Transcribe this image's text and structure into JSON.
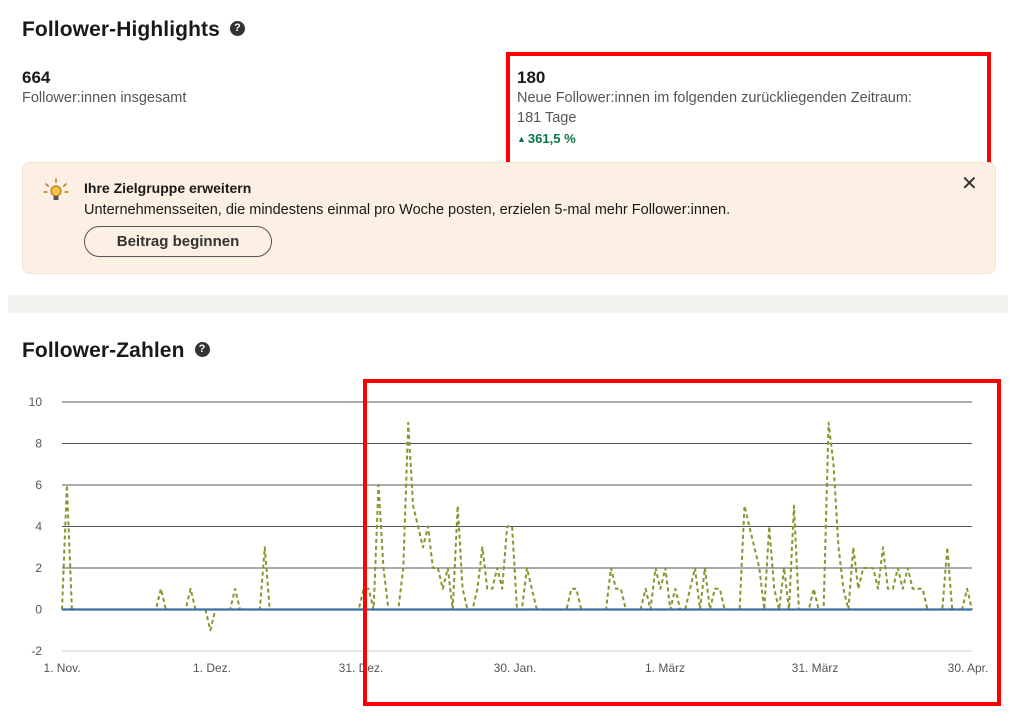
{
  "highlights": {
    "title": "Follower-Highlights",
    "help": "?",
    "total": {
      "value": "664",
      "label": "Follower:innen insgesamt"
    },
    "new": {
      "value": "180",
      "label_line1": "Neue Follower:innen im folgenden zurückliegenden Zeitraum:",
      "label_line2": "181 Tage",
      "change": "361,5 %",
      "change_color": "#057642"
    }
  },
  "banner": {
    "icon": "lightbulb-icon",
    "title": "Ihre Zielgruppe erweitern",
    "text": "Unternehmensseiten, die mindestens einmal pro Woche posten, erzielen 5-mal mehr Follower:innen.",
    "button": "Beitrag beginnen",
    "close": "✕"
  },
  "counts": {
    "title": "Follower-Zahlen",
    "help": "?"
  },
  "annotation_color": "#ff0000",
  "chart_data": {
    "type": "line",
    "ylim": [
      -2,
      10
    ],
    "yticks": [
      -2,
      0,
      2,
      4,
      6,
      8,
      10
    ],
    "xticks": [
      "1. Nov.",
      "1. Dez.",
      "31. Dez.",
      "30. Jan.",
      "1. März",
      "31. März",
      "30. Apr."
    ],
    "grid": true,
    "series": [
      {
        "color": "#7f9a2e",
        "style": "dashed",
        "points": [
          [
            0,
            0
          ],
          [
            1,
            6
          ],
          [
            2,
            0
          ],
          [
            3,
            0
          ],
          [
            4,
            0
          ],
          [
            5,
            0
          ],
          [
            6,
            0
          ],
          [
            7,
            0
          ],
          [
            8,
            0
          ],
          [
            9,
            0
          ],
          [
            10,
            0
          ],
          [
            11,
            0
          ],
          [
            12,
            0
          ],
          [
            13,
            0
          ],
          [
            14,
            0
          ],
          [
            15,
            0
          ],
          [
            16,
            0
          ],
          [
            17,
            0
          ],
          [
            18,
            0
          ],
          [
            19,
            0
          ],
          [
            20,
            1
          ],
          [
            21,
            0
          ],
          [
            22,
            0
          ],
          [
            23,
            0
          ],
          [
            24,
            0
          ],
          [
            25,
            0
          ],
          [
            26,
            1
          ],
          [
            27,
            0
          ],
          [
            28,
            0
          ],
          [
            29,
            0
          ],
          [
            30,
            -1
          ],
          [
            31,
            0
          ],
          [
            32,
            0
          ],
          [
            33,
            0
          ],
          [
            34,
            0
          ],
          [
            35,
            1
          ],
          [
            36,
            0
          ],
          [
            37,
            0
          ],
          [
            38,
            0
          ],
          [
            39,
            0
          ],
          [
            40,
            0
          ],
          [
            41,
            3
          ],
          [
            42,
            0
          ],
          [
            43,
            0
          ],
          [
            44,
            0
          ],
          [
            45,
            0
          ],
          [
            46,
            0
          ],
          [
            47,
            0
          ],
          [
            48,
            0
          ],
          [
            49,
            0
          ],
          [
            50,
            0
          ],
          [
            51,
            0
          ],
          [
            52,
            0
          ],
          [
            53,
            0
          ],
          [
            54,
            0
          ],
          [
            55,
            0
          ],
          [
            56,
            0
          ],
          [
            57,
            0
          ],
          [
            58,
            0
          ],
          [
            59,
            0
          ],
          [
            60,
            0
          ],
          [
            61,
            1
          ],
          [
            62,
            1
          ],
          [
            63,
            0
          ],
          [
            64,
            6
          ],
          [
            65,
            2
          ],
          [
            66,
            0
          ],
          [
            67,
            0
          ],
          [
            68,
            0
          ],
          [
            69,
            2
          ],
          [
            70,
            9
          ],
          [
            71,
            5
          ],
          [
            72,
            4
          ],
          [
            73,
            3
          ],
          [
            74,
            4
          ],
          [
            75,
            2
          ],
          [
            76,
            2
          ],
          [
            77,
            1
          ],
          [
            78,
            2
          ],
          [
            79,
            0
          ],
          [
            80,
            5
          ],
          [
            81,
            1
          ],
          [
            82,
            0
          ],
          [
            83,
            0
          ],
          [
            84,
            1
          ],
          [
            85,
            3
          ],
          [
            86,
            1
          ],
          [
            87,
            1
          ],
          [
            88,
            2
          ],
          [
            89,
            1
          ],
          [
            90,
            4
          ],
          [
            91,
            4
          ],
          [
            92,
            0
          ],
          [
            93,
            0
          ],
          [
            94,
            2
          ],
          [
            95,
            1
          ],
          [
            96,
            0
          ],
          [
            97,
            0
          ],
          [
            98,
            0
          ],
          [
            99,
            0
          ],
          [
            100,
            0
          ],
          [
            101,
            0
          ],
          [
            102,
            0
          ],
          [
            103,
            1
          ],
          [
            104,
            1
          ],
          [
            105,
            0
          ],
          [
            106,
            0
          ],
          [
            107,
            0
          ],
          [
            108,
            0
          ],
          [
            109,
            0
          ],
          [
            110,
            0
          ],
          [
            111,
            2
          ],
          [
            112,
            1
          ],
          [
            113,
            1
          ],
          [
            114,
            0
          ],
          [
            115,
            0
          ],
          [
            116,
            0
          ],
          [
            117,
            0
          ],
          [
            118,
            1
          ],
          [
            119,
            0
          ],
          [
            120,
            2
          ],
          [
            121,
            1
          ],
          [
            122,
            2
          ],
          [
            123,
            0
          ],
          [
            124,
            1
          ],
          [
            125,
            0
          ],
          [
            126,
            0
          ],
          [
            127,
            1
          ],
          [
            128,
            2
          ],
          [
            129,
            0
          ],
          [
            130,
            2
          ],
          [
            131,
            0
          ],
          [
            132,
            1
          ],
          [
            133,
            1
          ],
          [
            134,
            0
          ],
          [
            135,
            0
          ],
          [
            136,
            0
          ],
          [
            137,
            0
          ],
          [
            138,
            5
          ],
          [
            139,
            4
          ],
          [
            140,
            3
          ],
          [
            141,
            2
          ],
          [
            142,
            0
          ],
          [
            143,
            4
          ],
          [
            144,
            1
          ],
          [
            145,
            0
          ],
          [
            146,
            2
          ],
          [
            147,
            0
          ],
          [
            148,
            5
          ],
          [
            149,
            0
          ],
          [
            150,
            0
          ],
          [
            151,
            0
          ],
          [
            152,
            1
          ],
          [
            153,
            0
          ],
          [
            154,
            0
          ],
          [
            155,
            9
          ],
          [
            156,
            7
          ],
          [
            157,
            3
          ],
          [
            158,
            1
          ],
          [
            159,
            0
          ],
          [
            160,
            3
          ],
          [
            161,
            1
          ],
          [
            162,
            2
          ],
          [
            163,
            2
          ],
          [
            164,
            2
          ],
          [
            165,
            1
          ],
          [
            166,
            3
          ],
          [
            167,
            1
          ],
          [
            168,
            1
          ],
          [
            169,
            2
          ],
          [
            170,
            1
          ],
          [
            171,
            2
          ],
          [
            172,
            1
          ],
          [
            173,
            1
          ],
          [
            174,
            1
          ],
          [
            175,
            0
          ],
          [
            176,
            0
          ],
          [
            177,
            0
          ],
          [
            178,
            0
          ],
          [
            179,
            3
          ],
          [
            180,
            0
          ],
          [
            181,
            0
          ],
          [
            182,
            0
          ],
          [
            183,
            1
          ],
          [
            184,
            0
          ]
        ]
      },
      {
        "color": "#3a6ea5",
        "style": "solid",
        "points": [
          [
            0,
            0
          ],
          [
            184,
            0
          ]
        ]
      }
    ]
  }
}
